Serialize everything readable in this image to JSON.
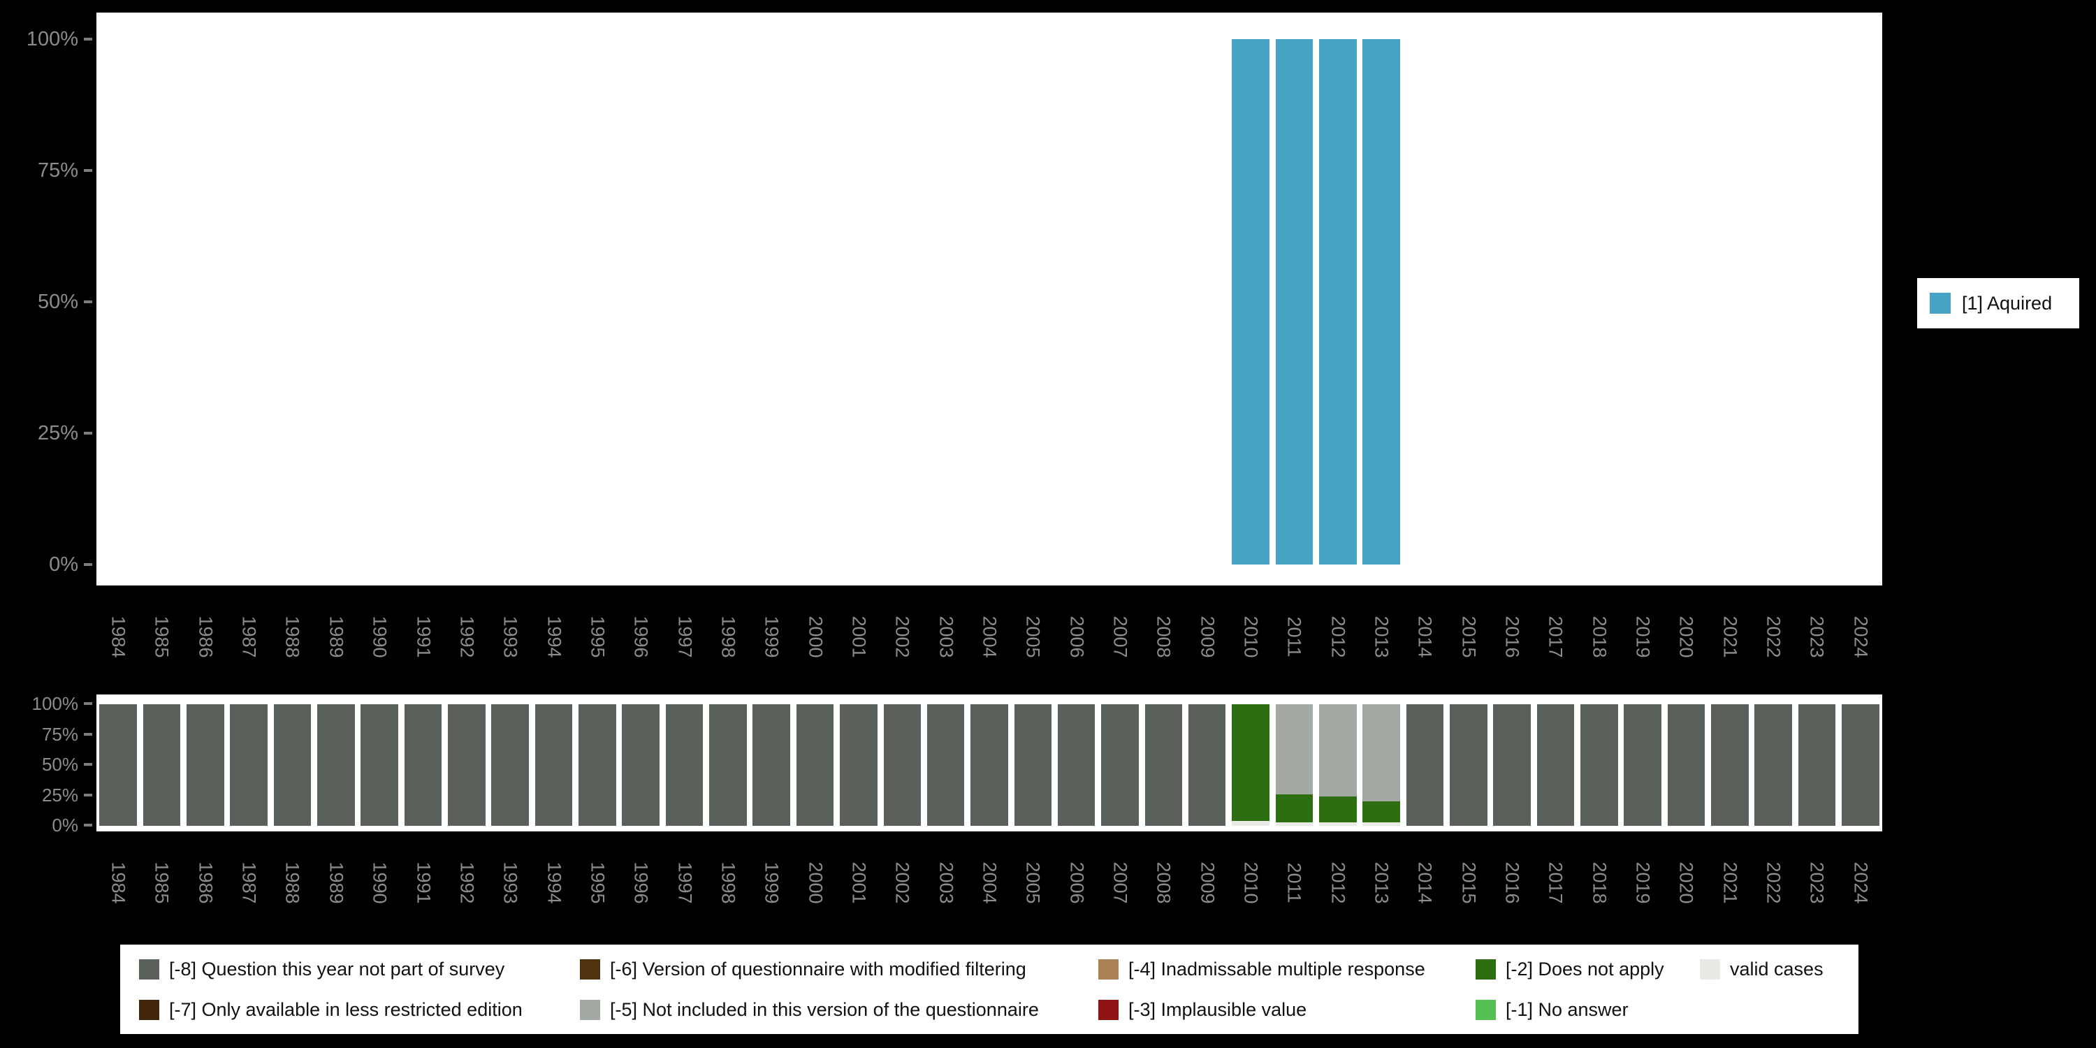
{
  "page": {
    "background": "#000000",
    "plot_background": "#ffffff",
    "axis_text_color": "#8c8c8c"
  },
  "top_legend": {
    "label": "[1] Aquired",
    "color": "#46a3c3"
  },
  "bottom_legend": {
    "items": [
      {
        "code": "-8",
        "label": "[-8] Question this year not part of survey",
        "color": "#59615a"
      },
      {
        "code": "-6",
        "label": "[-6] Version of questionnaire with modified filtering",
        "color": "#4f330f"
      },
      {
        "code": "-4",
        "label": "[-4] Inadmissable multiple response",
        "color": "#ac8055"
      },
      {
        "code": "-2",
        "label": "[-2] Does not apply",
        "color": "#2d6e13"
      },
      {
        "code": "valid",
        "label": "valid cases",
        "color": "#e9eae5"
      },
      {
        "code": "-7",
        "label": "[-7] Only available in less restricted edition",
        "color": "#40270c"
      },
      {
        "code": "-5",
        "label": "[-5] Not included in this version of the questionnaire",
        "color": "#a3a9a3"
      },
      {
        "code": "-3",
        "label": "[-3] Implausible value",
        "color": "#8e1312"
      },
      {
        "code": "-1",
        "label": "[-1] No answer",
        "color": "#55c054"
      }
    ]
  },
  "chart_data": [
    {
      "type": "bar",
      "title": "",
      "xlabel": "",
      "ylabel": "",
      "ylim": [
        0,
        100
      ],
      "grid": false,
      "legend_position": "right",
      "yticks": [
        "0%",
        "25%",
        "50%",
        "75%",
        "100%"
      ],
      "categories": [
        "1984",
        "1985",
        "1986",
        "1987",
        "1988",
        "1989",
        "1990",
        "1991",
        "1992",
        "1993",
        "1994",
        "1995",
        "1996",
        "1997",
        "1998",
        "1999",
        "2000",
        "2001",
        "2002",
        "2003",
        "2004",
        "2005",
        "2006",
        "2007",
        "2008",
        "2009",
        "2010",
        "2011",
        "2012",
        "2013",
        "2014",
        "2015",
        "2016",
        "2017",
        "2018",
        "2019",
        "2020",
        "2021",
        "2022",
        "2023",
        "2024"
      ],
      "stacked": true,
      "series": [
        {
          "name": "[1] Aquired",
          "color": "#46a3c3",
          "values": [
            0,
            0,
            0,
            0,
            0,
            0,
            0,
            0,
            0,
            0,
            0,
            0,
            0,
            0,
            0,
            0,
            0,
            0,
            0,
            0,
            0,
            0,
            0,
            0,
            0,
            0,
            100,
            100,
            100,
            100,
            0,
            0,
            0,
            0,
            0,
            0,
            0,
            0,
            0,
            0,
            0
          ]
        }
      ]
    },
    {
      "type": "bar",
      "title": "",
      "xlabel": "",
      "ylabel": "",
      "ylim": [
        0,
        100
      ],
      "grid": false,
      "legend_position": "bottom",
      "yticks": [
        "0%",
        "25%",
        "50%",
        "75%",
        "100%"
      ],
      "categories": [
        "1984",
        "1985",
        "1986",
        "1987",
        "1988",
        "1989",
        "1990",
        "1991",
        "1992",
        "1993",
        "1994",
        "1995",
        "1996",
        "1997",
        "1998",
        "1999",
        "2000",
        "2001",
        "2002",
        "2003",
        "2004",
        "2005",
        "2006",
        "2007",
        "2008",
        "2009",
        "2010",
        "2011",
        "2012",
        "2013",
        "2014",
        "2015",
        "2016",
        "2017",
        "2018",
        "2019",
        "2020",
        "2021",
        "2022",
        "2023",
        "2024"
      ],
      "stacked": true,
      "series": [
        {
          "name": "valid cases",
          "color": "#e9eae5",
          "values": [
            0,
            0,
            0,
            0,
            0,
            0,
            0,
            0,
            0,
            0,
            0,
            0,
            0,
            0,
            0,
            0,
            0,
            0,
            0,
            0,
            0,
            0,
            0,
            0,
            0,
            0,
            4,
            3,
            3,
            3,
            0,
            0,
            0,
            0,
            0,
            0,
            0,
            0,
            0,
            0,
            0
          ]
        },
        {
          "name": "[-2] Does not apply",
          "color": "#2d6e13",
          "values": [
            0,
            0,
            0,
            0,
            0,
            0,
            0,
            0,
            0,
            0,
            0,
            0,
            0,
            0,
            0,
            0,
            0,
            0,
            0,
            0,
            0,
            0,
            0,
            0,
            0,
            0,
            96,
            23,
            21,
            17,
            0,
            0,
            0,
            0,
            0,
            0,
            0,
            0,
            0,
            0,
            0
          ]
        },
        {
          "name": "[-5] Not included in this version of the questionnaire",
          "color": "#a3a9a3",
          "values": [
            0,
            0,
            0,
            0,
            0,
            0,
            0,
            0,
            0,
            0,
            0,
            0,
            0,
            0,
            0,
            0,
            0,
            0,
            0,
            0,
            0,
            0,
            0,
            0,
            0,
            0,
            0,
            74,
            76,
            80,
            0,
            0,
            0,
            0,
            0,
            0,
            0,
            0,
            0,
            0,
            0
          ]
        },
        {
          "name": "[-8] Question this year not part of survey",
          "color": "#59615a",
          "values": [
            100,
            100,
            100,
            100,
            100,
            100,
            100,
            100,
            100,
            100,
            100,
            100,
            100,
            100,
            100,
            100,
            100,
            100,
            100,
            100,
            100,
            100,
            100,
            100,
            100,
            100,
            0,
            0,
            0,
            0,
            100,
            100,
            100,
            100,
            100,
            100,
            100,
            100,
            100,
            100,
            100
          ]
        }
      ]
    }
  ]
}
